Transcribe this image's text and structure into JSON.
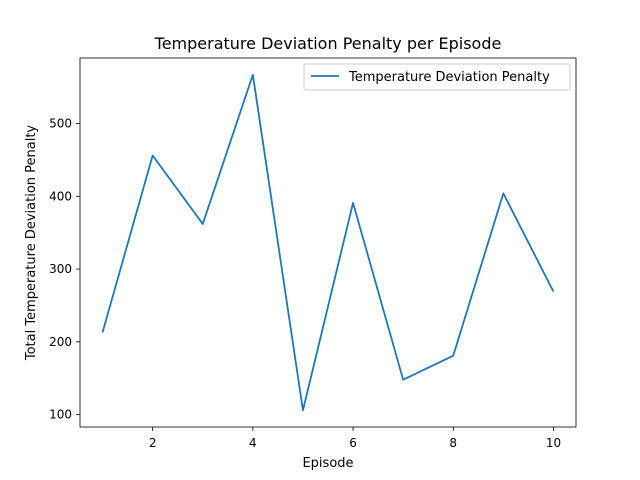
{
  "chart_data": {
    "type": "line",
    "title": "Temperature Deviation Penalty per Episode",
    "xlabel": "Episode",
    "ylabel": "Total Temperature Deviation Penalty",
    "x": [
      1,
      2,
      3,
      4,
      5,
      6,
      7,
      8,
      9,
      10
    ],
    "series": [
      {
        "name": "Temperature Deviation Penalty",
        "values": [
          213,
          456,
          362,
          567,
          106,
          391,
          148,
          181,
          404,
          269
        ],
        "color": "#1f77b4"
      }
    ],
    "xlim": [
      0.55,
      10.45
    ],
    "ylim": [
      83,
      590
    ],
    "x_ticks": [
      2,
      4,
      6,
      8,
      10
    ],
    "y_ticks": [
      100,
      200,
      300,
      400,
      500
    ],
    "grid": false,
    "legend_position": "upper-right"
  }
}
